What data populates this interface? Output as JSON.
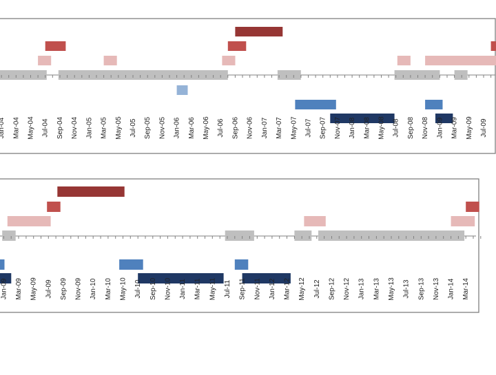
{
  "colors": {
    "dark_red": "#963634",
    "red": "#C0504D",
    "pink": "#E6B9B8",
    "gray": "#BFBFBF",
    "light_blue": "#95B3D7",
    "blue": "#4F81BD",
    "navy": "#1F3864",
    "axis": "#808080",
    "frame": "#7F7F7F"
  },
  "chart_data": [
    {
      "type": "gantt",
      "title": "",
      "xlabel": "",
      "ylabel": "",
      "legend": "none",
      "x_unit": "month index (0 = Jan-2000)",
      "xlim": [
        47.8,
        115.7
      ],
      "tick_labels": [
        "Jan-04",
        "Mar-04",
        "May-04",
        "Jul-04",
        "Sep-04",
        "Nov-04",
        "Jan-05",
        "Mar-05",
        "May-05",
        "Jul-05",
        "Sep-05",
        "Nov-05",
        "Jan-06",
        "Mar-06",
        "May-06",
        "Jul-06",
        "Sep-06",
        "Nov-06",
        "Jan-07",
        "Mar-07",
        "May-07",
        "Jul-07",
        "Sep-07",
        "Nov-07",
        "Jan-08",
        "Mar-08",
        "May-08",
        "Jul-08",
        "Sep-08",
        "Nov-08",
        "Jan-09",
        "Mar-09",
        "May-09",
        "Jul-09"
      ],
      "tick_start": 48,
      "tick_step": 2,
      "lanes": [
        {
          "lane": "dark_red",
          "color": "dark_red",
          "bars": [
            [
              80.0,
              86.5
            ]
          ]
        },
        {
          "lane": "red",
          "color": "red",
          "bars": [
            [
              54.0,
              56.8
            ],
            [
              79.0,
              81.5
            ],
            [
              115.0,
              116.0
            ]
          ]
        },
        {
          "lane": "pink",
          "color": "pink",
          "bars": [
            [
              53.0,
              54.8
            ],
            [
              62.0,
              63.8
            ],
            [
              78.2,
              80.0
            ],
            [
              102.2,
              104.0
            ],
            [
              106.0,
              116.0
            ]
          ]
        },
        {
          "lane": "gray",
          "color": "gray",
          "bars": [
            [
              47.5,
              54.2
            ],
            [
              55.8,
              79.0
            ],
            [
              85.8,
              89.0
            ],
            [
              101.8,
              108.0
            ],
            [
              106.0,
              108.0
            ],
            [
              110.0,
              111.8
            ]
          ]
        },
        {
          "lane": "light_blue",
          "color": "light_blue",
          "bars": [
            [
              72.0,
              73.5
            ]
          ]
        },
        {
          "lane": "blue",
          "color": "blue",
          "bars": [
            [
              88.2,
              93.8
            ],
            [
              106.0,
              108.4
            ]
          ]
        },
        {
          "lane": "navy",
          "color": "navy",
          "bars": [
            [
              93.0,
              101.8
            ],
            [
              107.4,
              109.8
            ]
          ]
        }
      ]
    },
    {
      "type": "gantt",
      "title": "",
      "xlabel": "",
      "ylabel": "",
      "legend": "none",
      "x_unit": "month index (0 = Jan-2000)",
      "xlim": [
        107.5,
        172.2
      ],
      "tick_labels": [
        "Jan-09",
        "Mar-09",
        "May-09",
        "Jul-09",
        "Sep-09",
        "Nov-09",
        "Jan-10",
        "Mar-10",
        "May-10",
        "Jul-10",
        "Sep-10",
        "Nov-10",
        "Jan-11",
        "Mar-11",
        "May-11",
        "Jul-11",
        "Sep-11",
        "Nov-11",
        "Jan-12",
        "Mar-12",
        "May-12",
        "Jul-12",
        "Sep-12",
        "Nov-12",
        "Jan-13",
        "Mar-13",
        "May-13",
        "Jul-13",
        "Sep-13",
        "Nov-13",
        "Jan-14",
        "Mar-14"
      ],
      "tick_start": 108,
      "tick_step": 2,
      "lanes": [
        {
          "lane": "dark_red",
          "color": "dark_red",
          "bars": [
            [
              115.2,
              124.2
            ]
          ]
        },
        {
          "lane": "red",
          "color": "red",
          "bars": [
            [
              113.8,
              115.6
            ],
            [
              170.0,
              171.8
            ]
          ]
        },
        {
          "lane": "pink",
          "color": "pink",
          "bars": [
            [
              108.5,
              114.3
            ],
            [
              148.3,
              151.2
            ],
            [
              168.0,
              171.2
            ]
          ]
        },
        {
          "lane": "gray",
          "color": "gray",
          "bars": [
            [
              107.8,
              109.6
            ],
            [
              137.7,
              141.6
            ],
            [
              147.0,
              149.3
            ],
            [
              150.2,
              169.8
            ]
          ]
        },
        {
          "lane": "blue",
          "color": "blue",
          "bars": [
            [
              105.5,
              108.1
            ],
            [
              123.5,
              126.7
            ],
            [
              139.0,
              140.8
            ]
          ]
        },
        {
          "lane": "navy",
          "color": "navy",
          "bars": [
            [
              105.5,
              109.0
            ],
            [
              126.0,
              137.5
            ],
            [
              140.0,
              146.5
            ]
          ]
        }
      ]
    }
  ]
}
